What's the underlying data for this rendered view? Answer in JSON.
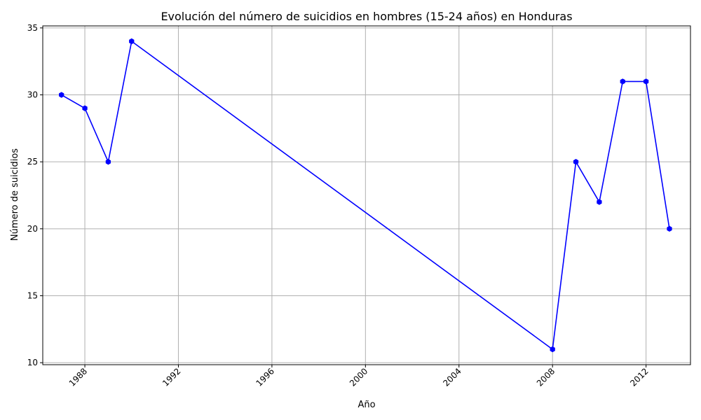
{
  "chart_data": {
    "type": "line",
    "title": "Evolución del número de suicidios en hombres (15-24 años) en Honduras",
    "xlabel": "Año",
    "ylabel": "Número de suicidios",
    "x": [
      1987,
      1988,
      1989,
      1990,
      2008,
      2009,
      2010,
      2011,
      2012,
      2013
    ],
    "series": [
      {
        "values": [
          30,
          29,
          25,
          34,
          11,
          25,
          22,
          31,
          31,
          20
        ],
        "color": "#0000ff",
        "marker": "hexagon"
      }
    ],
    "xticks": [
      "1988",
      "1992",
      "1996",
      "2000",
      "2004",
      "2008",
      "2012"
    ],
    "yticks": [
      "10",
      "15",
      "20",
      "25",
      "30",
      "35"
    ],
    "xlim": [
      1986.2,
      2013.9
    ],
    "ylim": [
      9.85,
      35.15
    ],
    "grid": true,
    "xtick_rotation": 45
  }
}
